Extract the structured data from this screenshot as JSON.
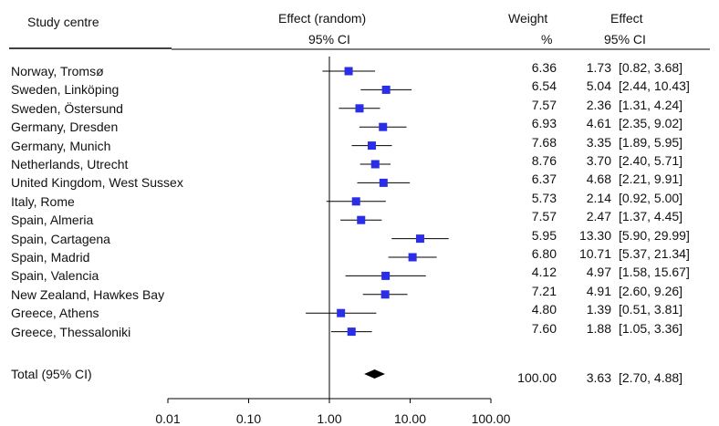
{
  "headers": {
    "study": "Study centre",
    "effect_random_1": "Effect (random)",
    "effect_random_2": "95% CI",
    "weight_1": "Weight",
    "weight_2": "%",
    "effect_1": "Effect",
    "effect_2": "95% CI"
  },
  "chart_data": {
    "type": "forest",
    "x_scale": "log",
    "xlim": [
      0.01,
      100
    ],
    "x_ticks": [
      "0.01",
      "0.10",
      "1.00",
      "10.00",
      "100.00"
    ],
    "x_tick_values": [
      0.01,
      0.1,
      1,
      10,
      100
    ],
    "reference_line": 1,
    "marker_color": "#2a2ee6",
    "studies": [
      {
        "name": "Norway, Tromsø",
        "weight": "6.36",
        "effect": "1.73",
        "ci": "[0.82, 3.68]",
        "est": 1.73,
        "lo": 0.82,
        "hi": 3.68
      },
      {
        "name": "Sweden, Linköping",
        "weight": "6.54",
        "effect": "5.04",
        "ci": "[2.44, 10.43]",
        "est": 5.04,
        "lo": 2.44,
        "hi": 10.43
      },
      {
        "name": "Sweden, Östersund",
        "weight": "7.57",
        "effect": "2.36",
        "ci": "[1.31, 4.24]",
        "est": 2.36,
        "lo": 1.31,
        "hi": 4.24
      },
      {
        "name": "Germany, Dresden",
        "weight": "6.93",
        "effect": "4.61",
        "ci": "[2.35, 9.02]",
        "est": 4.61,
        "lo": 2.35,
        "hi": 9.02
      },
      {
        "name": "Germany, Munich",
        "weight": "7.68",
        "effect": "3.35",
        "ci": "[1.89, 5.95]",
        "est": 3.35,
        "lo": 1.89,
        "hi": 5.95
      },
      {
        "name": "Netherlands, Utrecht",
        "weight": "8.76",
        "effect": "3.70",
        "ci": "[2.40, 5.71]",
        "est": 3.7,
        "lo": 2.4,
        "hi": 5.71
      },
      {
        "name": "United Kingdom, West Sussex",
        "weight": "6.37",
        "effect": "4.68",
        "ci": "[2.21, 9.91]",
        "est": 4.68,
        "lo": 2.21,
        "hi": 9.91
      },
      {
        "name": "Italy, Rome",
        "weight": "5.73",
        "effect": "2.14",
        "ci": "[0.92, 5.00]",
        "est": 2.14,
        "lo": 0.92,
        "hi": 5.0
      },
      {
        "name": "Spain, Almeria",
        "weight": "7.57",
        "effect": "2.47",
        "ci": "[1.37, 4.45]",
        "est": 2.47,
        "lo": 1.37,
        "hi": 4.45
      },
      {
        "name": "Spain, Cartagena",
        "weight": "5.95",
        "effect": "13.30",
        "ci": "[5.90, 29.99]",
        "est": 13.3,
        "lo": 5.9,
        "hi": 29.99
      },
      {
        "name": "Spain, Madrid",
        "weight": "6.80",
        "effect": "10.71",
        "ci": "[5.37, 21.34]",
        "est": 10.71,
        "lo": 5.37,
        "hi": 21.34
      },
      {
        "name": "Spain, Valencia",
        "weight": "4.12",
        "effect": "4.97",
        "ci": "[1.58, 15.67]",
        "est": 4.97,
        "lo": 1.58,
        "hi": 15.67
      },
      {
        "name": "New Zealand, Hawkes Bay",
        "weight": "7.21",
        "effect": "4.91",
        "ci": "[2.60, 9.26]",
        "est": 4.91,
        "lo": 2.6,
        "hi": 9.26
      },
      {
        "name": "Greece, Athens",
        "weight": "4.80",
        "effect": "1.39",
        "ci": "[0.51, 3.81]",
        "est": 1.39,
        "lo": 0.51,
        "hi": 3.81
      },
      {
        "name": "Greece, Thessaloniki",
        "weight": "7.60",
        "effect": "1.88",
        "ci": "[1.05, 3.36]",
        "est": 1.88,
        "lo": 1.05,
        "hi": 3.36
      }
    ],
    "total": {
      "name": "Total (95% CI)",
      "weight": "100.00",
      "effect": "3.63",
      "ci": "[2.70, 4.88]",
      "est": 3.63,
      "lo": 2.7,
      "hi": 4.88
    }
  }
}
